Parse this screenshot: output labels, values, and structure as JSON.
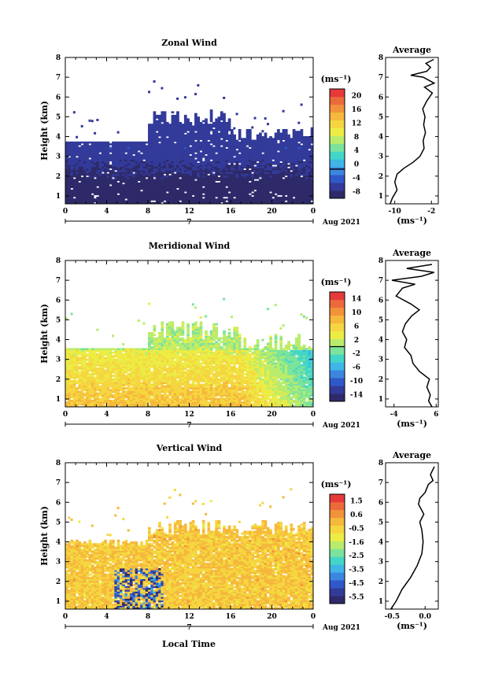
{
  "colors": {
    "scale": [
      "#2e2a6a",
      "#323a9a",
      "#2f58c8",
      "#3c86e0",
      "#3fb6e6",
      "#43d6c8",
      "#7be39c",
      "#b9ec6c",
      "#ecec45",
      "#f5d640",
      "#f6b83c",
      "#f2923a",
      "#ec6a3a",
      "#e63a3a"
    ],
    "frame": "#000000",
    "background": "#ffffff"
  },
  "chart_data": [
    {
      "type": "heatmap",
      "title": "Zonal Wind",
      "xlabel": "",
      "ylabel": "Height (km)",
      "date_label": "Aug 2021",
      "day_label": "7",
      "x_ticks": [
        "0",
        "4",
        "8",
        "12",
        "16",
        "20",
        "0"
      ],
      "y_ticks": [
        "1",
        "2",
        "3",
        "4",
        "5",
        "6",
        "7",
        "8"
      ],
      "xlim": [
        0,
        24
      ],
      "ylim": [
        0.6,
        8
      ],
      "colorbar": {
        "unit": "(ms⁻¹)",
        "ticks": [
          "20",
          "16",
          "12",
          "8",
          "4",
          "0",
          "-4",
          "-8"
        ],
        "range": [
          -8,
          22
        ],
        "zero_line": 0
      },
      "profile": {
        "title": "Average",
        "xlabel": "(ms⁻¹)",
        "x_ticks": [
          "-10",
          "-2"
        ],
        "x_tick_values": [
          -10,
          -2
        ],
        "xlim": [
          -12,
          -0.5
        ],
        "points": [
          [
            -11,
            0.6
          ],
          [
            -10.5,
            0.9
          ],
          [
            -9.5,
            1.3
          ],
          [
            -10,
            1.7
          ],
          [
            -9.5,
            2.1
          ],
          [
            -8,
            2.4
          ],
          [
            -6,
            2.7
          ],
          [
            -4.5,
            3.0
          ],
          [
            -3.6,
            3.4
          ],
          [
            -3.8,
            3.8
          ],
          [
            -3.3,
            4.2
          ],
          [
            -3.7,
            4.6
          ],
          [
            -3.4,
            5.0
          ],
          [
            -3.9,
            5.4
          ],
          [
            -3.0,
            5.8
          ],
          [
            -1.8,
            6.2
          ],
          [
            -3.5,
            6.5
          ],
          [
            -1.4,
            6.7
          ],
          [
            -3.8,
            7.0
          ],
          [
            -6.5,
            7.1
          ],
          [
            -3.0,
            7.3
          ],
          [
            -2.2,
            7.5
          ],
          [
            -3.2,
            7.7
          ],
          [
            -1.5,
            7.9
          ]
        ]
      }
    },
    {
      "type": "heatmap",
      "title": "Meridional Wind",
      "xlabel": "",
      "ylabel": "Height (km)",
      "date_label": "Aug 2021",
      "day_label": "7",
      "x_ticks": [
        "0",
        "4",
        "8",
        "12",
        "16",
        "20",
        "0"
      ],
      "y_ticks": [
        "1",
        "2",
        "3",
        "4",
        "5",
        "6",
        "7",
        "8"
      ],
      "xlim": [
        0,
        24
      ],
      "ylim": [
        0.6,
        8
      ],
      "colorbar": {
        "unit": "(ms⁻¹)",
        "ticks": [
          "14",
          "10",
          "6",
          "2",
          "-2",
          "-6",
          "-10",
          "-14"
        ],
        "range": [
          -16,
          16
        ],
        "zero_line": 0
      },
      "profile": {
        "title": "Average",
        "xlabel": "(ms⁻¹)",
        "x_ticks": [
          "-4",
          "6"
        ],
        "x_tick_values": [
          -4,
          6
        ],
        "xlim": [
          -6,
          6.5
        ],
        "points": [
          [
            5.0,
            0.6
          ],
          [
            4.2,
            0.9
          ],
          [
            4.6,
            1.2
          ],
          [
            3.8,
            1.6
          ],
          [
            4.4,
            2.0
          ],
          [
            2.0,
            2.4
          ],
          [
            0.5,
            2.8
          ],
          [
            0.0,
            3.2
          ],
          [
            -1.5,
            3.6
          ],
          [
            -1.0,
            4.0
          ],
          [
            -2.0,
            4.4
          ],
          [
            -1.3,
            4.8
          ],
          [
            0.2,
            5.2
          ],
          [
            2.0,
            5.5
          ],
          [
            0.0,
            5.8
          ],
          [
            -3.5,
            6.2
          ],
          [
            -2.0,
            6.6
          ],
          [
            1.0,
            6.8
          ],
          [
            -4.5,
            7.0
          ],
          [
            2.5,
            7.2
          ],
          [
            5.5,
            7.4
          ],
          [
            -1.0,
            7.6
          ],
          [
            5.0,
            7.8
          ]
        ]
      }
    },
    {
      "type": "heatmap",
      "title": "Vertical Wind",
      "xlabel": "Local Time",
      "ylabel": "Height (km)",
      "date_label": "Aug 2021",
      "day_label": "7",
      "x_ticks": [
        "0",
        "4",
        "8",
        "12",
        "16",
        "20",
        "0"
      ],
      "y_ticks": [
        "1",
        "2",
        "3",
        "4",
        "5",
        "6",
        "7",
        "8"
      ],
      "xlim": [
        0,
        24
      ],
      "ylim": [
        0.6,
        8
      ],
      "colorbar": {
        "unit": "(ms⁻¹)",
        "ticks": [
          "1.5",
          "0.6",
          "-0.5",
          "-1.6",
          "-2.5",
          "-3.5",
          "-4.5",
          "-5.5"
        ],
        "range": [
          -6,
          2
        ]
      },
      "profile": {
        "title": "Average",
        "xlabel": "(ms⁻¹)",
        "x_ticks": [
          "-0.5",
          "0.0"
        ],
        "x_tick_values": [
          -0.5,
          0.0
        ],
        "xlim": [
          -0.6,
          0.2
        ],
        "points": [
          [
            -0.52,
            0.6
          ],
          [
            -0.44,
            1.0
          ],
          [
            -0.35,
            1.6
          ],
          [
            -0.22,
            2.2
          ],
          [
            -0.12,
            2.8
          ],
          [
            -0.05,
            3.4
          ],
          [
            -0.03,
            4.0
          ],
          [
            -0.05,
            4.6
          ],
          [
            -0.08,
            5.0
          ],
          [
            -0.02,
            5.4
          ],
          [
            -0.1,
            5.9
          ],
          [
            -0.08,
            6.2
          ],
          [
            0.0,
            6.5
          ],
          [
            0.05,
            6.9
          ],
          [
            0.12,
            7.1
          ],
          [
            0.08,
            7.4
          ],
          [
            0.14,
            7.8
          ]
        ]
      }
    }
  ]
}
